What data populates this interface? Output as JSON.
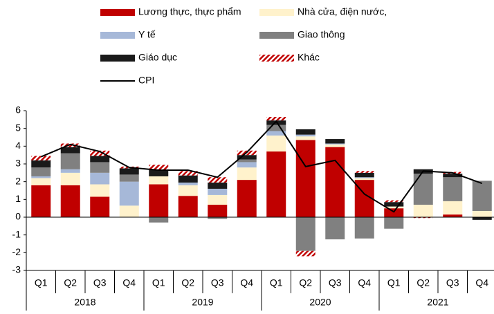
{
  "chart_data": {
    "type": "stacked-bar-line",
    "categories": [
      "Q1",
      "Q2",
      "Q3",
      "Q4",
      "Q1",
      "Q2",
      "Q3",
      "Q4",
      "Q1",
      "Q2",
      "Q3",
      "Q4",
      "Q1",
      "Q2",
      "Q3",
      "Q4"
    ],
    "years": [
      "2018",
      "2019",
      "2020",
      "2021"
    ],
    "series": [
      {
        "name": "Lương thực, thực phẩm",
        "color": "#c00000",
        "values": [
          1.8,
          1.8,
          1.15,
          0,
          1.85,
          1.2,
          0.7,
          2.1,
          3.7,
          4.35,
          3.95,
          2.1,
          0.5,
          0,
          0.15,
          0
        ]
      },
      {
        "name": "Nhà cửa, điện nước,",
        "color": "#fff2cc",
        "values": [
          0.4,
          0.7,
          0.7,
          0.65,
          0.45,
          0.6,
          0.55,
          0.7,
          0.9,
          0.2,
          0.15,
          0.1,
          0.1,
          0.7,
          0.75,
          0.35
        ]
      },
      {
        "name": "Y tế",
        "color": "#a6b8d8",
        "values": [
          0.1,
          0.2,
          0.65,
          1.35,
          0,
          0.15,
          0.35,
          0.3,
          0.25,
          0.1,
          0.05,
          0.05,
          0,
          0,
          0,
          0
        ]
      },
      {
        "name": "Giao thông",
        "color": "#808080",
        "values": [
          0.5,
          0.9,
          0.6,
          0.4,
          -0.3,
          0,
          -0.1,
          0.15,
          0.35,
          -1.9,
          -1.25,
          -1.2,
          -0.65,
          1.75,
          1.35,
          1.7
        ]
      },
      {
        "name": "Giáo dục",
        "color": "#1a1a1a",
        "values": [
          0.4,
          0.35,
          0.35,
          0.35,
          0.35,
          0.4,
          0.35,
          0.25,
          0.25,
          0.3,
          0.25,
          0.25,
          0.25,
          0.25,
          0.2,
          -0.15
        ]
      },
      {
        "name": "Khác",
        "color": "#c00000",
        "pattern": "hatch",
        "values": [
          0.25,
          0.2,
          0.3,
          0.1,
          0.3,
          0.25,
          0.3,
          0.25,
          0.2,
          -0.3,
          0,
          0.1,
          0.1,
          -0.05,
          0.1,
          0
        ]
      },
      {
        "name": "CPI",
        "color": "#000000",
        "kind": "line",
        "values": [
          3.4,
          4.1,
          3.7,
          2.8,
          2.65,
          2.65,
          2.25,
          3.65,
          5.4,
          2.85,
          3.2,
          1.3,
          0.3,
          2.6,
          2.5,
          1.9
        ]
      }
    ],
    "ylim": [
      -3,
      6
    ],
    "yticks": [
      -3,
      -2,
      -1,
      0,
      1,
      2,
      3,
      4,
      5,
      6
    ]
  }
}
